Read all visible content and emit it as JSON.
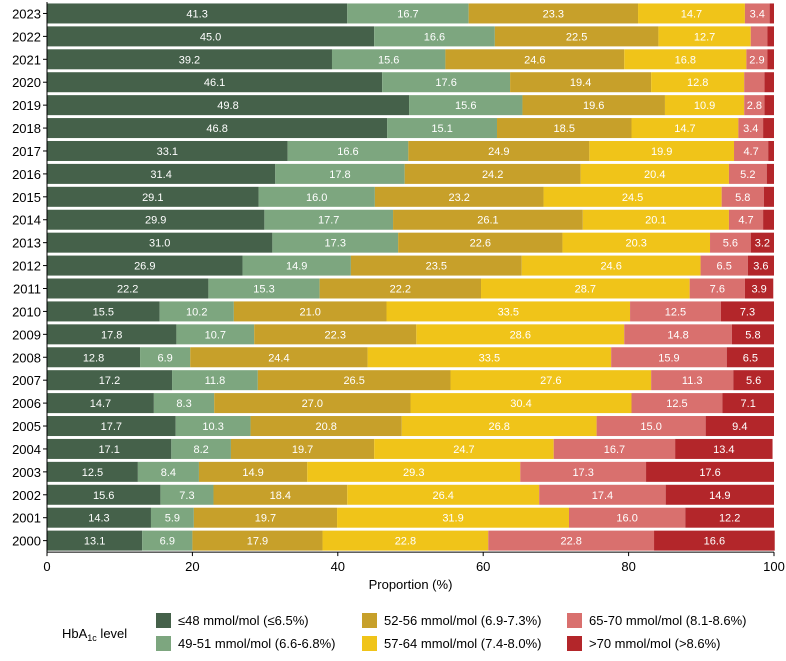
{
  "chart_data": {
    "type": "bar",
    "orientation": "horizontal",
    "stacked": true,
    "categories": [
      "2023",
      "2022",
      "2021",
      "2020",
      "2019",
      "2018",
      "2017",
      "2016",
      "2015",
      "2014",
      "2013",
      "2012",
      "2011",
      "2010",
      "2009",
      "2008",
      "2007",
      "2006",
      "2005",
      "2004",
      "2003",
      "2002",
      "2001",
      "2000"
    ],
    "series": [
      {
        "name": "≤48 mmol/mol (≤6.5%)",
        "color": "#45614a",
        "values": [
          41.3,
          45.0,
          39.2,
          46.1,
          49.8,
          46.8,
          33.1,
          31.4,
          29.1,
          29.9,
          31.0,
          26.9,
          22.2,
          15.5,
          17.8,
          12.8,
          17.2,
          14.7,
          17.7,
          17.1,
          12.5,
          15.6,
          14.3,
          13.1
        ]
      },
      {
        "name": "49-51 mmol/mol (6.6-6.8%)",
        "color": "#7da67f",
        "values": [
          16.7,
          16.6,
          15.6,
          17.6,
          15.6,
          15.1,
          16.6,
          17.8,
          16.0,
          17.7,
          17.3,
          14.9,
          15.3,
          10.2,
          10.7,
          6.9,
          11.8,
          8.3,
          10.3,
          8.2,
          8.4,
          7.3,
          5.9,
          6.9
        ]
      },
      {
        "name": "52-56 mmol/mol (6.9-7.3%)",
        "color": "#c7a02a",
        "values": [
          23.3,
          22.5,
          24.6,
          19.4,
          19.6,
          18.5,
          24.9,
          24.2,
          23.2,
          26.1,
          22.6,
          23.5,
          22.2,
          21.0,
          22.3,
          24.4,
          26.5,
          27.0,
          20.8,
          19.7,
          14.9,
          18.4,
          19.7,
          17.9
        ]
      },
      {
        "name": "57-64 mmol/mol (7.4-8.0%)",
        "color": "#f0c419",
        "values": [
          14.7,
          12.7,
          16.8,
          12.8,
          10.9,
          14.7,
          19.9,
          20.4,
          24.5,
          20.1,
          20.3,
          24.6,
          28.7,
          33.5,
          28.6,
          33.5,
          27.6,
          30.4,
          26.8,
          24.7,
          29.3,
          26.4,
          31.9,
          22.8
        ]
      },
      {
        "name": "65-70 mmol/mol (8.1-8.6%)",
        "color": "#d9706e",
        "values": [
          3.4,
          2.3,
          2.9,
          2.8,
          2.8,
          3.4,
          4.7,
          5.2,
          5.8,
          4.7,
          5.6,
          6.5,
          7.6,
          12.5,
          14.8,
          15.9,
          11.3,
          12.5,
          15.0,
          16.7,
          17.3,
          17.4,
          16.0,
          22.8
        ]
      },
      {
        "name": ">70 mmol/mol (>8.6%)",
        "color": "#b3262a",
        "values": [
          0.6,
          0.9,
          0.9,
          1.3,
          1.3,
          1.5,
          0.8,
          1.0,
          1.4,
          1.5,
          3.2,
          3.6,
          3.9,
          7.3,
          5.8,
          6.5,
          5.6,
          7.1,
          9.4,
          13.4,
          17.6,
          14.9,
          12.2,
          16.6
        ]
      }
    ],
    "labels_shown": [
      [
        "41.3",
        "16.7",
        "23.3",
        "14.7",
        "3.4",
        ""
      ],
      [
        "45.0",
        "16.6",
        "22.5",
        "12.7",
        "",
        ""
      ],
      [
        "39.2",
        "15.6",
        "24.6",
        "16.8",
        "2.9",
        ""
      ],
      [
        "46.1",
        "17.6",
        "19.4",
        "12.8",
        "",
        ""
      ],
      [
        "49.8",
        "15.6",
        "19.6",
        "10.9",
        "2.8",
        ""
      ],
      [
        "46.8",
        "15.1",
        "18.5",
        "14.7",
        "3.4",
        ""
      ],
      [
        "33.1",
        "16.6",
        "24.9",
        "19.9",
        "4.7",
        ""
      ],
      [
        "31.4",
        "17.8",
        "24.2",
        "20.4",
        "5.2",
        ""
      ],
      [
        "29.1",
        "16.0",
        "23.2",
        "24.5",
        "5.8",
        ""
      ],
      [
        "29.9",
        "17.7",
        "26.1",
        "20.1",
        "4.7",
        ""
      ],
      [
        "31.0",
        "17.3",
        "22.6",
        "20.3",
        "5.6",
        "3.2"
      ],
      [
        "26.9",
        "14.9",
        "23.5",
        "24.6",
        "6.5",
        "3.6"
      ],
      [
        "22.2",
        "15.3",
        "22.2",
        "28.7",
        "7.6",
        "3.9"
      ],
      [
        "15.5",
        "10.2",
        "21.0",
        "33.5",
        "12.5",
        "7.3"
      ],
      [
        "17.8",
        "10.7",
        "22.3",
        "28.6",
        "14.8",
        "5.8"
      ],
      [
        "12.8",
        "6.9",
        "24.4",
        "33.5",
        "15.9",
        "6.5"
      ],
      [
        "17.2",
        "11.8",
        "26.5",
        "27.6",
        "11.3",
        "5.6"
      ],
      [
        "14.7",
        "8.3",
        "27.0",
        "30.4",
        "12.5",
        "7.1"
      ],
      [
        "17.7",
        "10.3",
        "20.8",
        "26.8",
        "15.0",
        "9.4"
      ],
      [
        "17.1",
        "8.2",
        "19.7",
        "24.7",
        "16.7",
        "13.4"
      ],
      [
        "12.5",
        "8.4",
        "14.9",
        "29.3",
        "17.3",
        "17.6"
      ],
      [
        "15.6",
        "7.3",
        "18.4",
        "26.4",
        "17.4",
        "14.9"
      ],
      [
        "14.3",
        "5.9",
        "19.7",
        "31.9",
        "16.0",
        "12.2"
      ],
      [
        "13.1",
        "6.9",
        "17.9",
        "22.8",
        "22.8",
        "16.6"
      ]
    ],
    "xlabel": "Proportion (%)",
    "ylabel": "",
    "xlim": [
      0,
      100
    ],
    "xticks": [
      0,
      20,
      40,
      60,
      80,
      100
    ],
    "legend_title_main": "HbA",
    "legend_title_sub": "1c",
    "legend_title_rest": " level",
    "legend_position": "bottom"
  }
}
